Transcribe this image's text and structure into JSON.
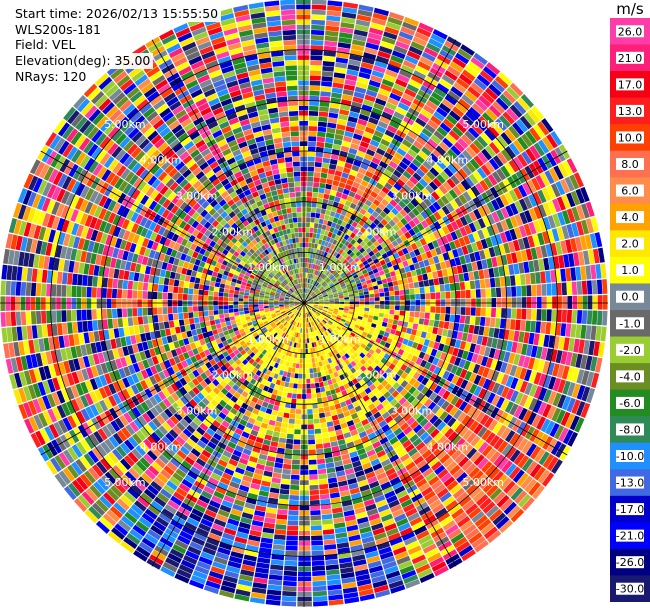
{
  "info": {
    "start_time": "Start time: 2026/02/13 15:55:50",
    "instrument": "WLS200s-181",
    "field": "Field: VEL",
    "elevation": "Elevation(deg): 35.00",
    "nrays": "NRays: 120"
  },
  "chart_data": {
    "type": "heatmap",
    "subtype": "polar-ppi",
    "field": "VEL",
    "nrays": 120,
    "range_unit": "km",
    "range_rings_km": [
      1,
      2,
      3,
      4,
      5
    ],
    "ring_labels": [
      "1.00km",
      "2.00km",
      "3.00km",
      "4.00km",
      "5.00km"
    ],
    "max_range_km": 6,
    "colorbar": {
      "unit": "m/s",
      "ticks": [
        "26.0",
        "21.0",
        "17.0",
        "13.0",
        "10.0",
        "8.0",
        "6.0",
        "4.0",
        "2.0",
        "1.0",
        "0.0",
        "-1.0",
        "-2.0",
        "-4.0",
        "-6.0",
        "-8.0",
        "-10.0",
        "-13.0",
        "-17.0",
        "-21.0",
        "-26.0",
        "-30.0"
      ],
      "colors": [
        "#ff3ca8",
        "#ff1e78",
        "#f50014",
        "#ff1e1e",
        "#ff4000",
        "#ff6f50",
        "#ff8c4a",
        "#ffa200",
        "#ffe800",
        "#ffff00",
        "#778899",
        "#696969",
        "#9acd32",
        "#6b8e23",
        "#228b22",
        "#2e8b57",
        "#1e90ff",
        "#4169e1",
        "#0000cd",
        "#0000ff",
        "#000080",
        "#191970"
      ]
    }
  }
}
